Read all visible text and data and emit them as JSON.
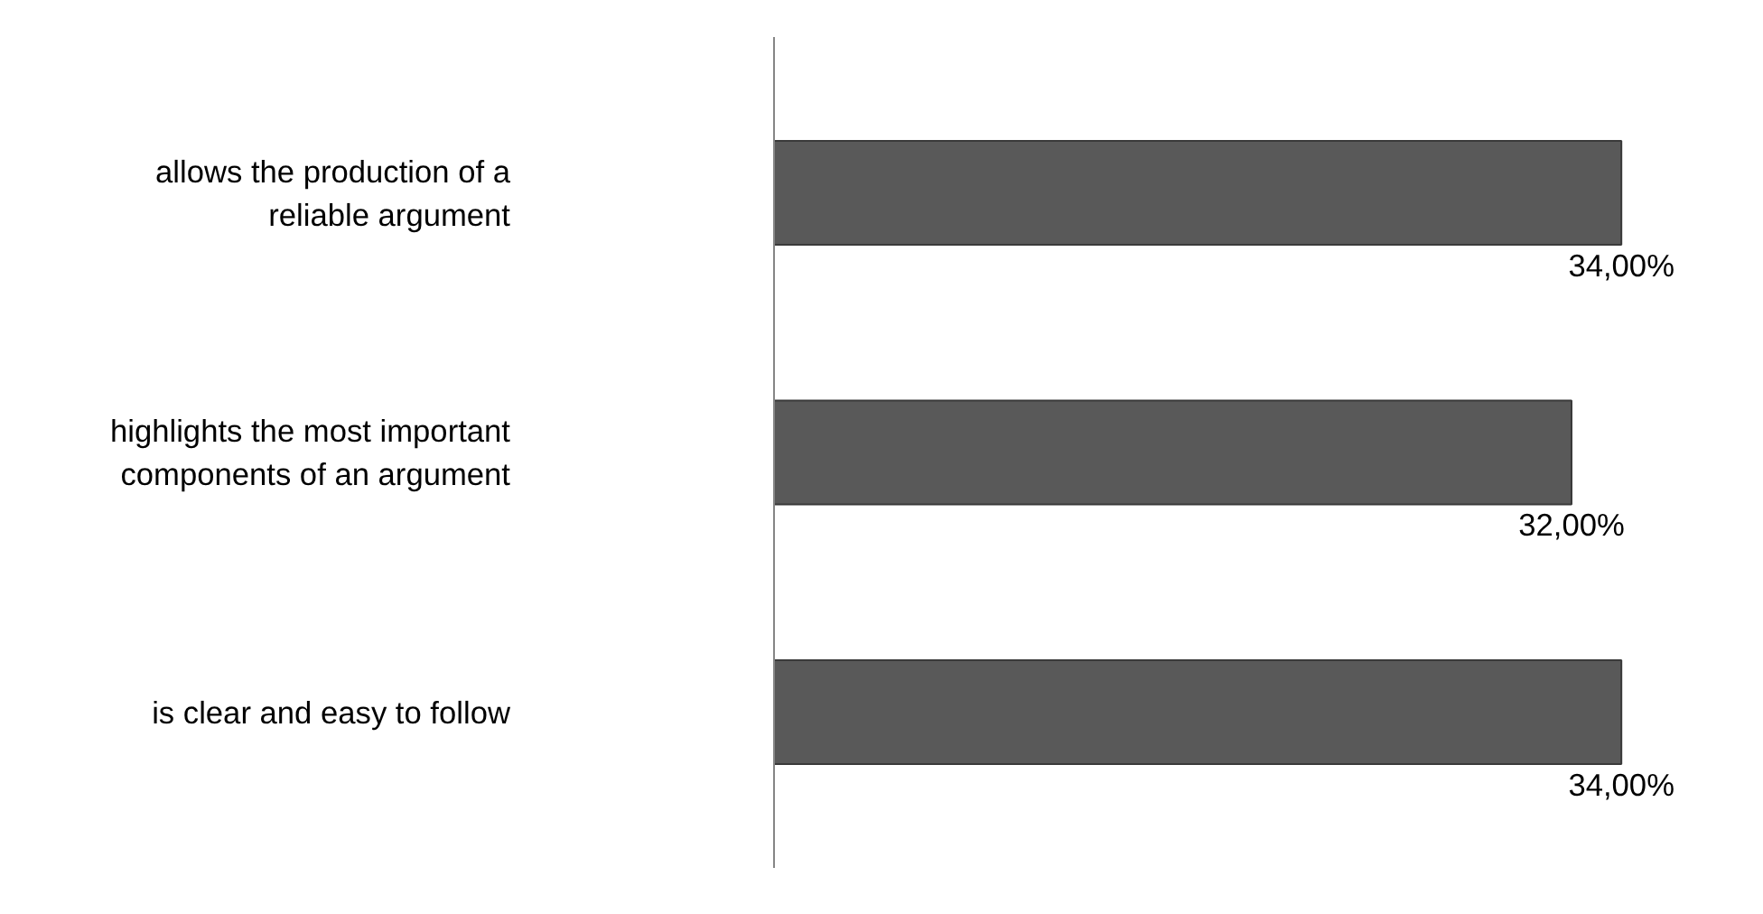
{
  "chart_data": {
    "type": "bar",
    "orientation": "horizontal",
    "categories": [
      "allows the production of a reliable argument",
      "highlights the most important components of an argument",
      "is clear and easy to follow"
    ],
    "values": [
      34,
      32,
      34
    ],
    "value_labels": [
      "34,00%",
      "32,00%",
      "34,00%"
    ],
    "color": "#595959",
    "tick_labels": "y",
    "grid": false
  }
}
